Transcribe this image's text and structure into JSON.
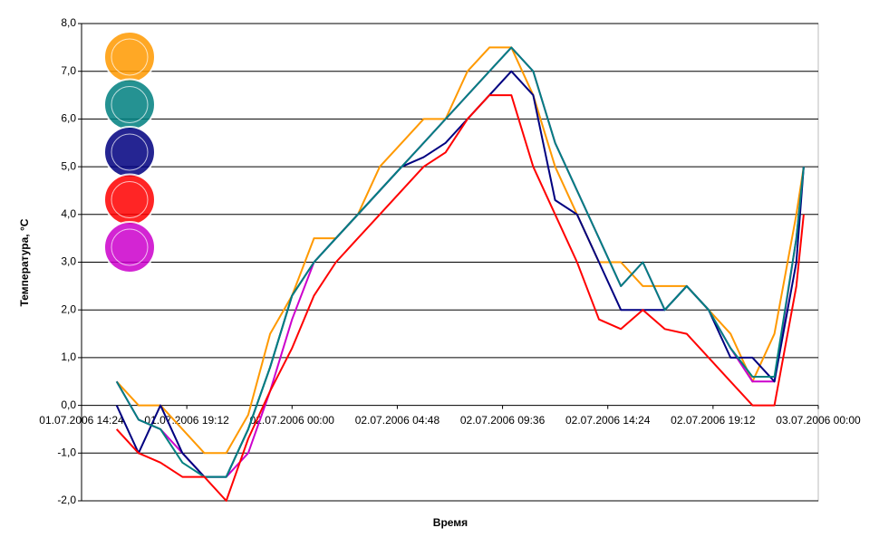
{
  "chart_data": {
    "type": "line",
    "y_label": "Температура, °С",
    "x_label": "Время",
    "x": [
      "01.07.2006 16:00",
      "01.07.2006 17:00",
      "01.07.2006 18:00",
      "01.07.2006 19:00",
      "01.07.2006 20:00",
      "01.07.2006 21:00",
      "01.07.2006 22:00",
      "01.07.2006 23:00",
      "02.07.2006 00:00",
      "02.07.2006 01:00",
      "02.07.2006 02:00",
      "02.07.2006 03:00",
      "02.07.2006 04:00",
      "02.07.2006 05:00",
      "02.07.2006 06:00",
      "02.07.2006 07:00",
      "02.07.2006 08:00",
      "02.07.2006 09:00",
      "02.07.2006 10:00",
      "02.07.2006 11:00",
      "02.07.2006 12:00",
      "02.07.2006 13:00",
      "02.07.2006 14:00",
      "02.07.2006 15:00",
      "02.07.2006 16:00",
      "02.07.2006 17:00",
      "02.07.2006 18:00",
      "02.07.2006 19:00",
      "02.07.2006 20:00",
      "02.07.2006 21:00",
      "02.07.2006 22:00",
      "02.07.2006 23:00",
      "02.07.2006 23:20"
    ],
    "series": [
      {
        "color": "#ff9900",
        "values": [
          0.5,
          0.0,
          0.0,
          -0.5,
          -1.0,
          -1.0,
          -0.2,
          1.5,
          2.3,
          3.5,
          3.5,
          4.0,
          5.0,
          5.5,
          6.0,
          6.0,
          7.0,
          7.5,
          7.5,
          6.5,
          5.0,
          4.0,
          3.0,
          3.0,
          2.5,
          2.5,
          2.5,
          2.0,
          1.5,
          0.5,
          1.5,
          4.0,
          5.0
        ]
      },
      {
        "color": "#cc00cc",
        "values": [
          0.5,
          -0.3,
          -0.5,
          -1.0,
          -1.5,
          -1.5,
          -1.0,
          0.3,
          1.8,
          3.0,
          3.5,
          4.0,
          4.5,
          5.0,
          5.5,
          6.0,
          6.5,
          7.0,
          7.5,
          7.0,
          5.5,
          4.5,
          3.5,
          2.5,
          3.0,
          2.0,
          2.5,
          2.0,
          1.2,
          0.5,
          0.5,
          3.5,
          5.0
        ]
      },
      {
        "color": "#000080",
        "values": [
          0.0,
          -1.0,
          0.0,
          -1.0,
          -1.5,
          -1.5,
          -0.5,
          0.8,
          2.3,
          3.0,
          3.5,
          4.0,
          4.5,
          5.0,
          5.2,
          5.5,
          6.0,
          6.5,
          7.0,
          6.5,
          4.3,
          4.0,
          3.0,
          2.0,
          2.0,
          2.0,
          2.5,
          2.0,
          1.0,
          1.0,
          0.5,
          3.0,
          5.0
        ]
      },
      {
        "color": "#008080",
        "values": [
          0.5,
          -0.3,
          -0.5,
          -1.2,
          -1.5,
          -1.5,
          -0.5,
          0.8,
          2.3,
          3.0,
          3.5,
          4.0,
          4.5,
          5.0,
          5.5,
          6.0,
          6.5,
          7.0,
          7.5,
          7.0,
          5.5,
          4.5,
          3.5,
          2.5,
          3.0,
          2.0,
          2.5,
          2.0,
          1.2,
          0.6,
          0.6,
          3.5,
          5.0
        ]
      },
      {
        "color": "#ff0000",
        "values": [
          -0.5,
          -1.0,
          -1.2,
          -1.5,
          -1.5,
          -2.0,
          -0.7,
          0.3,
          1.2,
          2.3,
          3.0,
          3.5,
          4.0,
          4.5,
          5.0,
          5.3,
          6.0,
          6.5,
          6.5,
          5.0,
          4.0,
          3.0,
          1.8,
          1.6,
          2.0,
          1.6,
          1.5,
          1.0,
          0.5,
          0.0,
          0.0,
          2.5,
          4.0
        ]
      }
    ],
    "xlim": [
      "01.07.2006 14:24",
      "03.07.2006 00:00"
    ],
    "xticks": [
      "01.07.2006 14:24",
      "01.07.2006 19:12",
      "02.07.2006 00:00",
      "02.07.2006 04:48",
      "02.07.2006 09:36",
      "02.07.2006 14:24",
      "02.07.2006 19:12",
      "03.07.2006 00:00"
    ],
    "ylim": [
      -2,
      8
    ],
    "yticks": [
      {
        "value": -2,
        "label": "-2,0"
      },
      {
        "value": -1,
        "label": "-1,0"
      },
      {
        "value": 0,
        "label": "0,0"
      },
      {
        "value": 1,
        "label": "1,0"
      },
      {
        "value": 2,
        "label": "2,0"
      },
      {
        "value": 3,
        "label": "3,0"
      },
      {
        "value": 4,
        "label": "4,0"
      },
      {
        "value": 5,
        "label": "5,0"
      },
      {
        "value": 6,
        "label": "6,0"
      },
      {
        "value": 7,
        "label": "7,0"
      },
      {
        "value": 8,
        "label": "8,0"
      }
    ],
    "grid": true
  }
}
